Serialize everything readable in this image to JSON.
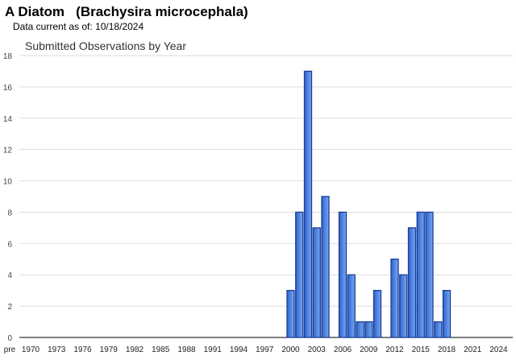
{
  "header": {
    "common_name": "A Diatom",
    "scientific_name": "(Brachysira microcephala)",
    "data_current_label": "Data current as of:",
    "data_current_date": "10/18/2024"
  },
  "chart_data": {
    "type": "bar",
    "title": "Submitted Observations by Year",
    "xlabel": "",
    "ylabel": "",
    "ylim": [
      0,
      18
    ],
    "yticks": [
      0,
      2,
      4,
      6,
      8,
      10,
      12,
      14,
      16,
      18
    ],
    "grid": true,
    "x_tick_labels": [
      "pre",
      "1970",
      "1973",
      "1976",
      "1979",
      "1982",
      "1985",
      "1988",
      "1991",
      "1994",
      "1997",
      "2000",
      "2003",
      "2006",
      "2009",
      "2012",
      "2015",
      "2018",
      "2021",
      "2024"
    ],
    "categories": [
      "2000",
      "2001",
      "2002",
      "2003",
      "2004",
      "2005",
      "2006",
      "2007",
      "2008",
      "2009",
      "2010",
      "2011",
      "2012",
      "2013",
      "2014",
      "2015",
      "2016",
      "2017",
      "2018"
    ],
    "values": [
      3,
      8,
      17,
      7,
      9,
      0,
      8,
      4,
      1,
      1,
      3,
      0,
      5,
      4,
      7,
      8,
      8,
      1,
      3
    ],
    "colors": {
      "bar_fill": "#4f83e0",
      "bar_stroke": "#1a3e96",
      "grid": "#dddddd",
      "axis": "#000000"
    }
  }
}
